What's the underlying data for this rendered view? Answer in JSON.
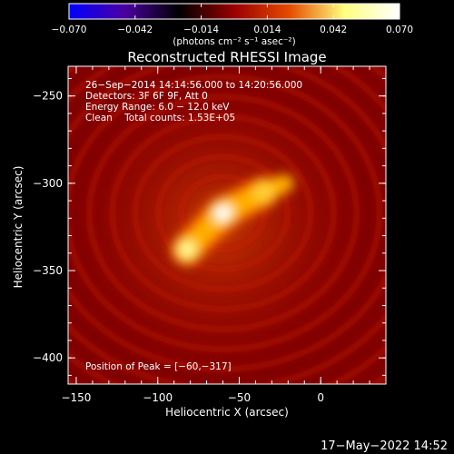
{
  "colorbar": {
    "ticks": [
      "−0.070",
      "−0.042",
      "−0.014",
      "0.014",
      "0.042",
      "0.070"
    ],
    "tick_values": [
      -0.07,
      -0.042,
      -0.014,
      0.014,
      0.042,
      0.07
    ],
    "unit_label": "(photons cm⁻² s⁻¹ asec⁻²)",
    "range": [
      -0.07,
      0.07
    ],
    "colors": [
      "#0000ff",
      "#4b00a0",
      "#000000",
      "#9b0000",
      "#e64b00",
      "#ffff80",
      "#ffffff"
    ]
  },
  "chart_data": {
    "type": "heatmap",
    "title": "Reconstructed RHESSI Image",
    "xlabel": "Heliocentric X (arcsec)",
    "ylabel": "Heliocentric Y (arcsec)",
    "xlim": [
      -155,
      40
    ],
    "ylim": [
      -415,
      -233
    ],
    "xticks": [
      -150,
      -100,
      -50,
      0
    ],
    "xtick_labels": [
      "−150",
      "−100",
      "−50",
      "0"
    ],
    "yticks": [
      -250,
      -300,
      -350,
      -400
    ],
    "ytick_labels": [
      "−250",
      "−300",
      "−350",
      "−400"
    ],
    "info_lines": [
      "26−Sep−2014 14:14:56.000 to 14:20:56.000",
      "Detectors: 3F 6F 9F, Att 0",
      "Energy Range: 6.0 − 12.0 keV",
      "Clean    Total counts: 1.53E+05"
    ],
    "peak_label": "Position of Peak = [−60,−317]",
    "peak": [
      -60,
      -317
    ],
    "sources": [
      {
        "x": -60,
        "y": -317,
        "intensity": 0.07
      },
      {
        "x": -82,
        "y": -338,
        "intensity": 0.06
      },
      {
        "x": -35,
        "y": -305,
        "intensity": 0.048
      }
    ]
  },
  "timestamp": "17−May−2022 14:52"
}
